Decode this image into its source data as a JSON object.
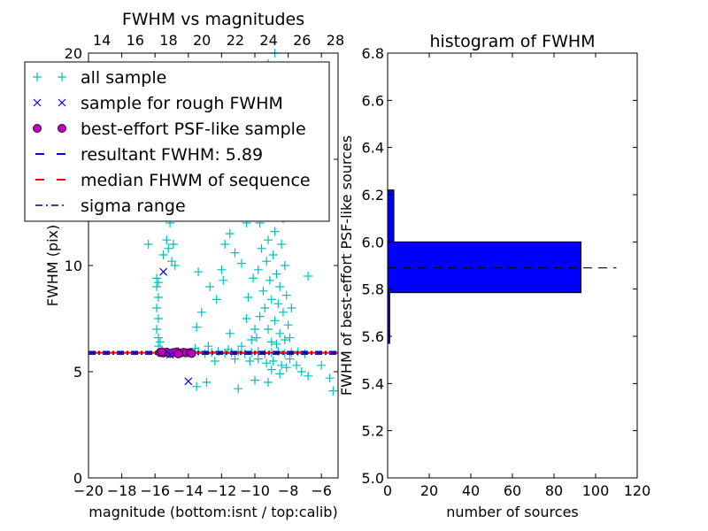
{
  "chart_data": [
    {
      "type": "scatter",
      "title": "FWHM vs magnitudes",
      "xlabel": "magnitude (bottom:isnt / top:calib)",
      "ylabel": "FWHM (pix)",
      "xlim": [
        -20,
        -5
      ],
      "ylim": [
        0,
        20
      ],
      "top_xlim": [
        13.2,
        28.16
      ],
      "xticks": [
        "−20",
        "−18",
        "−16",
        "−14",
        "−12",
        "−10",
        "−8",
        "−6"
      ],
      "xtick_values": [
        -20,
        -18,
        -16,
        -14,
        -12,
        -10,
        -8,
        -6
      ],
      "yticks": [
        "0",
        "5",
        "10",
        "15",
        "20"
      ],
      "ytick_values": [
        0,
        5,
        10,
        15,
        20
      ],
      "top_xticks": [
        "14",
        "16",
        "18",
        "20",
        "22",
        "24",
        "26",
        "28"
      ],
      "top_xtick_values": [
        14,
        16,
        18,
        20,
        22,
        24,
        26,
        28
      ],
      "legend_position": "top-left",
      "legend": [
        {
          "label": "all sample",
          "marker": "+",
          "color": "#00bfbf"
        },
        {
          "label": "sample for rough FWHM",
          "marker": "x",
          "color": "#0000ff"
        },
        {
          "label": "best-effort PSF-like sample",
          "marker": "o",
          "color": "#bf00bf"
        },
        {
          "label": "resultant FWHM: 5.89",
          "marker": "dashed",
          "color": "#0000ff"
        },
        {
          "label": "median FHWM of sequence",
          "marker": "dashed",
          "color": "#ff0000"
        },
        {
          "label": "sigma range",
          "marker": "dashdot",
          "color": "#00008b"
        }
      ],
      "resultant_fwhm": 5.89,
      "median_fwhm": 5.89,
      "sigma_range": [
        5.83,
        5.95
      ],
      "series": [
        {
          "name": "all sample",
          "points": [
            [
              -15.8,
              6.2
            ],
            [
              -15.8,
              6.6
            ],
            [
              -15.9,
              7.0
            ],
            [
              -15.8,
              7.5
            ],
            [
              -15.9,
              8.0
            ],
            [
              -15.8,
              8.5
            ],
            [
              -15.9,
              9.0
            ],
            [
              -15.9,
              9.4
            ],
            [
              -15.7,
              6.4
            ],
            [
              -15.8,
              9.2
            ],
            [
              -16.4,
              11.0
            ],
            [
              -15.3,
              11.2
            ],
            [
              -15.0,
              10.2
            ],
            [
              -15.2,
              10.8
            ],
            [
              -14.8,
              10.0
            ],
            [
              -15.5,
              10.5
            ],
            [
              -14.9,
              11.0
            ],
            [
              -15.1,
              12.0
            ],
            [
              -13.5,
              7.1
            ],
            [
              -12.3,
              8.4
            ],
            [
              -11.9,
              9.3
            ],
            [
              -11.2,
              10.6
            ],
            [
              -12.7,
              9.0
            ],
            [
              -10.8,
              10.1
            ],
            [
              -13.2,
              7.8
            ],
            [
              -10.5,
              7.5
            ],
            [
              -11.5,
              6.8
            ],
            [
              -13.4,
              9.7
            ],
            [
              -12.0,
              9.8
            ],
            [
              -11.8,
              11.0
            ],
            [
              -6.8,
              9.5
            ],
            [
              -5.5,
              4.7
            ],
            [
              -5.3,
              4.1
            ],
            [
              -6.8,
              4.8
            ],
            [
              -13.5,
              4.3
            ],
            [
              -12.9,
              4.5
            ],
            [
              -11.0,
              4.2
            ],
            [
              -10.0,
              4.6
            ],
            [
              -7.5,
              5.3
            ],
            [
              -7.2,
              5.0
            ],
            [
              -6.0,
              5.3
            ],
            [
              -9.2,
              4.5
            ],
            [
              -8.5,
              4.9
            ],
            [
              -10.5,
              12.0
            ],
            [
              -11.5,
              11.5
            ],
            [
              -9.9,
              13.0
            ],
            [
              -8.8,
              20.0
            ],
            [
              -9.2,
              19.5
            ],
            [
              -8.5,
              18.0
            ],
            [
              -9.6,
              17.0
            ],
            [
              -9.0,
              16.5
            ],
            [
              -8.7,
              15.5
            ],
            [
              -9.3,
              15.0
            ],
            [
              -9.5,
              14.2
            ],
            [
              -8.9,
              14.0
            ],
            [
              -9.4,
              13.2
            ],
            [
              -8.6,
              13.0
            ],
            [
              -9.1,
              12.5
            ],
            [
              -8.3,
              12.2
            ],
            [
              -9.7,
              12.0
            ],
            [
              -8.8,
              11.6
            ],
            [
              -9.2,
              11.2
            ],
            [
              -8.4,
              11.0
            ],
            [
              -9.6,
              10.8
            ],
            [
              -8.9,
              10.5
            ],
            [
              -9.3,
              10.2
            ],
            [
              -8.2,
              10.0
            ],
            [
              -9.8,
              9.8
            ],
            [
              -8.7,
              9.6
            ],
            [
              -9.1,
              9.3
            ],
            [
              -8.5,
              9.0
            ],
            [
              -9.5,
              8.8
            ],
            [
              -8.1,
              8.6
            ],
            [
              -9.0,
              8.4
            ],
            [
              -8.6,
              8.2
            ],
            [
              -9.4,
              8.0
            ],
            [
              -8.3,
              7.8
            ],
            [
              -9.7,
              7.6
            ],
            [
              -8.8,
              7.4
            ],
            [
              -8.0,
              7.2
            ],
            [
              -9.2,
              7.0
            ],
            [
              -8.5,
              6.8
            ],
            [
              -9.9,
              6.6
            ],
            [
              -8.2,
              6.5
            ],
            [
              -9.0,
              6.4
            ],
            [
              -8.7,
              6.3
            ],
            [
              -10.2,
              6.5
            ],
            [
              -7.9,
              6.6
            ],
            [
              -10.8,
              6.2
            ],
            [
              -10.0,
              7.0
            ],
            [
              -10.4,
              8.5
            ],
            [
              -10.1,
              9.4
            ],
            [
              -7.8,
              8.0
            ],
            [
              -8.9,
              5.5
            ],
            [
              -8.4,
              5.3
            ],
            [
              -9.3,
              5.4
            ],
            [
              -7.9,
              5.6
            ],
            [
              -9.8,
              5.6
            ],
            [
              -8.1,
              5.2
            ],
            [
              -9.0,
              5.1
            ],
            [
              -10.3,
              5.5
            ],
            [
              -11.2,
              5.6
            ],
            [
              -12.4,
              5.5
            ],
            [
              -15.0,
              5.9
            ],
            [
              -14.6,
              5.95
            ],
            [
              -14.2,
              5.85
            ],
            [
              -13.8,
              5.9
            ],
            [
              -13.4,
              5.95
            ],
            [
              -13.0,
              5.85
            ],
            [
              -12.6,
              5.9
            ],
            [
              -12.2,
              5.95
            ],
            [
              -11.8,
              5.85
            ],
            [
              -11.4,
              5.9
            ],
            [
              -11.0,
              5.95
            ],
            [
              -10.6,
              5.85
            ],
            [
              -10.2,
              5.9
            ],
            [
              -9.8,
              5.95
            ],
            [
              -9.4,
              5.85
            ],
            [
              -9.0,
              5.9
            ],
            [
              -8.6,
              5.95
            ],
            [
              -8.2,
              5.85
            ],
            [
              -7.8,
              5.9
            ],
            [
              -7.4,
              5.95
            ],
            [
              -7.0,
              5.85
            ],
            [
              -13.6,
              6.1
            ],
            [
              -12.8,
              6.2
            ],
            [
              -11.6,
              6.05
            ]
          ]
        },
        {
          "name": "sample for rough FWHM",
          "points": [
            [
              -15.5,
              9.7
            ],
            [
              -14.0,
              4.55
            ],
            [
              -15.1,
              5.8
            ]
          ]
        },
        {
          "name": "best-effort PSF-like sample",
          "points": [
            [
              -15.7,
              5.9
            ],
            [
              -15.5,
              5.88
            ],
            [
              -15.3,
              5.92
            ],
            [
              -15.1,
              5.86
            ],
            [
              -14.9,
              5.9
            ],
            [
              -14.7,
              5.93
            ],
            [
              -14.5,
              5.87
            ],
            [
              -14.3,
              5.91
            ],
            [
              -14.1,
              5.89
            ],
            [
              -13.9,
              5.9
            ],
            [
              -13.8,
              5.86
            ],
            [
              -15.6,
              5.94
            ],
            [
              -14.6,
              5.84
            ]
          ]
        }
      ]
    },
    {
      "type": "bar",
      "orientation": "horizontal",
      "title": "histogram of FWHM",
      "xlabel": "number of sources",
      "ylabel": "FWHM of best-effort PSF-like sources",
      "xlim": [
        0,
        120
      ],
      "ylim": [
        5.0,
        6.8
      ],
      "xticks": [
        "0",
        "20",
        "40",
        "60",
        "80",
        "100",
        "120"
      ],
      "xtick_values": [
        0,
        20,
        40,
        60,
        80,
        100,
        120
      ],
      "yticks": [
        "5.0",
        "5.2",
        "5.4",
        "5.6",
        "5.8",
        "6.0",
        "6.2",
        "6.4",
        "6.6",
        "6.8"
      ],
      "ytick_values": [
        5.0,
        5.2,
        5.4,
        5.6,
        5.8,
        6.0,
        6.2,
        6.4,
        6.6,
        6.8
      ],
      "bins": [
        [
          5.57,
          5.785
        ],
        [
          5.785,
          6.0
        ],
        [
          6.0,
          6.22
        ]
      ],
      "values": [
        1,
        93,
        3
      ],
      "bar_color": "#0000ff",
      "reference_line": {
        "value": 5.89,
        "xmax": 110
      }
    }
  ]
}
